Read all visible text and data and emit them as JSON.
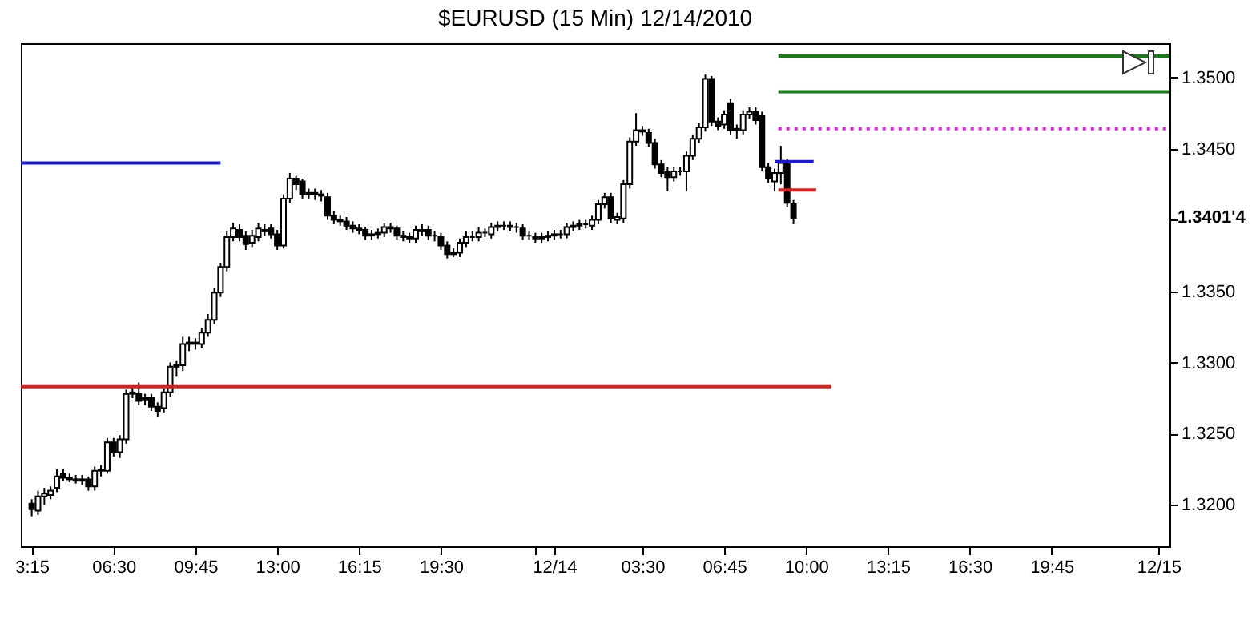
{
  "chart_data": {
    "type": "candlestick",
    "title": "$EURUSD (15 Min)  12/14/2010",
    "x": [
      "2010-12-13T03:15",
      "2010-12-13T03:30",
      "2010-12-13T03:45",
      "2010-12-13T04:00",
      "2010-12-13T04:15",
      "2010-12-13T04:30",
      "2010-12-13T04:45",
      "2010-12-13T05:00",
      "2010-12-13T05:15",
      "2010-12-13T05:30",
      "2010-12-13T05:45",
      "2010-12-13T06:00",
      "2010-12-13T06:15",
      "2010-12-13T06:30",
      "2010-12-13T06:45",
      "2010-12-13T07:00",
      "2010-12-13T07:15",
      "2010-12-13T07:30",
      "2010-12-13T07:45",
      "2010-12-13T08:00",
      "2010-12-13T08:15",
      "2010-12-13T08:30",
      "2010-12-13T08:45",
      "2010-12-13T09:00",
      "2010-12-13T09:15",
      "2010-12-13T09:30",
      "2010-12-13T09:45",
      "2010-12-13T10:00",
      "2010-12-13T10:15",
      "2010-12-13T10:30",
      "2010-12-13T10:45",
      "2010-12-13T11:00",
      "2010-12-13T11:15",
      "2010-12-13T11:30",
      "2010-12-13T11:45",
      "2010-12-13T12:00",
      "2010-12-13T12:15",
      "2010-12-13T12:30",
      "2010-12-13T12:45",
      "2010-12-13T13:00",
      "2010-12-13T13:15",
      "2010-12-13T13:30",
      "2010-12-13T13:45",
      "2010-12-13T14:00",
      "2010-12-13T14:15",
      "2010-12-13T14:30",
      "2010-12-13T14:45",
      "2010-12-13T15:00",
      "2010-12-13T15:15",
      "2010-12-13T15:30",
      "2010-12-13T15:45",
      "2010-12-13T16:00",
      "2010-12-13T16:15",
      "2010-12-13T16:30",
      "2010-12-13T16:45",
      "2010-12-13T17:00",
      "2010-12-13T17:15",
      "2010-12-13T17:30",
      "2010-12-13T17:45",
      "2010-12-13T18:00",
      "2010-12-13T18:15",
      "2010-12-13T18:30",
      "2010-12-13T18:45",
      "2010-12-13T19:00",
      "2010-12-13T19:15",
      "2010-12-13T19:30",
      "2010-12-13T19:45",
      "2010-12-13T20:00",
      "2010-12-13T20:15",
      "2010-12-13T20:30",
      "2010-12-13T20:45",
      "2010-12-13T21:00",
      "2010-12-13T21:15",
      "2010-12-13T21:30",
      "2010-12-13T21:45",
      "2010-12-13T22:00",
      "2010-12-13T22:15",
      "2010-12-13T22:30",
      "2010-12-13T22:45",
      "2010-12-13T23:00",
      "2010-12-13T23:15",
      "2010-12-13T23:30",
      "2010-12-13T23:45",
      "2010-12-14T00:00",
      "2010-12-14T00:15",
      "2010-12-14T00:30",
      "2010-12-14T00:45",
      "2010-12-14T01:00",
      "2010-12-14T01:15",
      "2010-12-14T01:30",
      "2010-12-14T01:45",
      "2010-12-14T02:00",
      "2010-12-14T02:15",
      "2010-12-14T02:30",
      "2010-12-14T02:45",
      "2010-12-14T03:00",
      "2010-12-14T03:15",
      "2010-12-14T03:30",
      "2010-12-14T03:45",
      "2010-12-14T04:00",
      "2010-12-14T04:15",
      "2010-12-14T04:30",
      "2010-12-14T04:45",
      "2010-12-14T05:00",
      "2010-12-14T05:15",
      "2010-12-14T05:30",
      "2010-12-14T05:45",
      "2010-12-14T06:00",
      "2010-12-14T06:15",
      "2010-12-14T06:30",
      "2010-12-14T06:45",
      "2010-12-14T07:00",
      "2010-12-14T07:15",
      "2010-12-14T07:30",
      "2010-12-14T07:45",
      "2010-12-14T08:00",
      "2010-12-14T08:15",
      "2010-12-14T08:30",
      "2010-12-14T08:45",
      "2010-12-14T09:00",
      "2010-12-14T09:15",
      "2010-12-14T09:30"
    ],
    "ohlc": [
      [
        1.3201,
        1.3204,
        1.3192,
        1.3197
      ],
      [
        1.3196,
        1.321,
        1.3193,
        1.3206
      ],
      [
        1.3206,
        1.3212,
        1.32,
        1.3208
      ],
      [
        1.3207,
        1.3213,
        1.3204,
        1.321
      ],
      [
        1.3212,
        1.3225,
        1.3209,
        1.322
      ],
      [
        1.3222,
        1.3225,
        1.3217,
        1.3219
      ],
      [
        1.3219,
        1.3222,
        1.3216,
        1.3218
      ],
      [
        1.3218,
        1.3221,
        1.3215,
        1.3217
      ],
      [
        1.3217,
        1.3221,
        1.3214,
        1.3218
      ],
      [
        1.3218,
        1.322,
        1.321,
        1.3213
      ],
      [
        1.3213,
        1.3227,
        1.321,
        1.3224
      ],
      [
        1.3224,
        1.3228,
        1.322,
        1.3225
      ],
      [
        1.3224,
        1.3247,
        1.3222,
        1.3244
      ],
      [
        1.3244,
        1.3247,
        1.3234,
        1.3237
      ],
      [
        1.3237,
        1.3249,
        1.3233,
        1.3246
      ],
      [
        1.3246,
        1.3281,
        1.3243,
        1.3278
      ],
      [
        1.3278,
        1.3283,
        1.3275,
        1.3279
      ],
      [
        1.3278,
        1.3286,
        1.327,
        1.3273
      ],
      [
        1.3274,
        1.3278,
        1.327,
        1.3275
      ],
      [
        1.3275,
        1.3278,
        1.3266,
        1.3269
      ],
      [
        1.3269,
        1.3272,
        1.3262,
        1.3266
      ],
      [
        1.3268,
        1.3282,
        1.3265,
        1.3279
      ],
      [
        1.3279,
        1.33,
        1.3276,
        1.3297
      ],
      [
        1.3297,
        1.3301,
        1.329,
        1.3298
      ],
      [
        1.3298,
        1.3318,
        1.3294,
        1.3313
      ],
      [
        1.3313,
        1.3318,
        1.3308,
        1.3314
      ],
      [
        1.3313,
        1.3317,
        1.3309,
        1.3314
      ],
      [
        1.3313,
        1.3324,
        1.331,
        1.3321
      ],
      [
        1.3321,
        1.3334,
        1.3318,
        1.333
      ],
      [
        1.333,
        1.3352,
        1.3327,
        1.3349
      ],
      [
        1.3349,
        1.337,
        1.3346,
        1.3367
      ],
      [
        1.3367,
        1.3392,
        1.3364,
        1.3388
      ],
      [
        1.3388,
        1.3398,
        1.3385,
        1.3394
      ],
      [
        1.3393,
        1.3397,
        1.3385,
        1.3388
      ],
      [
        1.3389,
        1.3392,
        1.3379,
        1.3383
      ],
      [
        1.3384,
        1.3393,
        1.3381,
        1.3389
      ],
      [
        1.3388,
        1.3398,
        1.3385,
        1.3394
      ],
      [
        1.3393,
        1.3397,
        1.3389,
        1.3392
      ],
      [
        1.3394,
        1.3397,
        1.3387,
        1.339
      ],
      [
        1.339,
        1.3393,
        1.3379,
        1.3382
      ],
      [
        1.3382,
        1.3418,
        1.338,
        1.3415
      ],
      [
        1.3415,
        1.3433,
        1.3412,
        1.3429
      ],
      [
        1.3429,
        1.3431,
        1.3421,
        1.3425
      ],
      [
        1.3427,
        1.3429,
        1.3415,
        1.3418
      ],
      [
        1.3418,
        1.3422,
        1.3415,
        1.3419
      ],
      [
        1.3419,
        1.3422,
        1.3414,
        1.3418
      ],
      [
        1.3418,
        1.3421,
        1.3413,
        1.3417
      ],
      [
        1.3416,
        1.3419,
        1.34,
        1.3403
      ],
      [
        1.3403,
        1.3406,
        1.3397,
        1.34
      ],
      [
        1.34,
        1.3403,
        1.3396,
        1.3399
      ],
      [
        1.3399,
        1.3402,
        1.3393,
        1.3396
      ],
      [
        1.3396,
        1.3399,
        1.3391,
        1.3394
      ],
      [
        1.3394,
        1.3397,
        1.339,
        1.3393
      ],
      [
        1.3393,
        1.3395,
        1.3386,
        1.3389
      ],
      [
        1.3389,
        1.3393,
        1.3386,
        1.339
      ],
      [
        1.339,
        1.3394,
        1.3387,
        1.3391
      ],
      [
        1.3391,
        1.3398,
        1.3388,
        1.3395
      ],
      [
        1.3395,
        1.3398,
        1.3391,
        1.3394
      ],
      [
        1.3394,
        1.3396,
        1.3386,
        1.3389
      ],
      [
        1.3389,
        1.3392,
        1.3385,
        1.3388
      ],
      [
        1.3388,
        1.3391,
        1.3384,
        1.3387
      ],
      [
        1.3387,
        1.3396,
        1.3384,
        1.3393
      ],
      [
        1.3393,
        1.3397,
        1.3389,
        1.3392
      ],
      [
        1.3393,
        1.3396,
        1.3386,
        1.3389
      ],
      [
        1.3389,
        1.3392,
        1.3385,
        1.3389
      ],
      [
        1.3388,
        1.3391,
        1.3379,
        1.3382
      ],
      [
        1.3382,
        1.3385,
        1.3373,
        1.3376
      ],
      [
        1.3376,
        1.338,
        1.3374,
        1.3377
      ],
      [
        1.3377,
        1.3387,
        1.3374,
        1.3384
      ],
      [
        1.3384,
        1.3392,
        1.3381,
        1.3388
      ],
      [
        1.3388,
        1.3392,
        1.3385,
        1.3388
      ],
      [
        1.3388,
        1.3395,
        1.3385,
        1.3391
      ],
      [
        1.3391,
        1.3394,
        1.3388,
        1.3391
      ],
      [
        1.339,
        1.3398,
        1.3387,
        1.3395
      ],
      [
        1.3395,
        1.3399,
        1.3392,
        1.3396
      ],
      [
        1.3396,
        1.3399,
        1.3393,
        1.3396
      ],
      [
        1.3396,
        1.3399,
        1.3392,
        1.3395
      ],
      [
        1.3395,
        1.3398,
        1.3391,
        1.3395
      ],
      [
        1.3394,
        1.3397,
        1.3386,
        1.3389
      ],
      [
        1.3389,
        1.3392,
        1.3386,
        1.3389
      ],
      [
        1.3388,
        1.3391,
        1.3384,
        1.3387
      ],
      [
        1.3387,
        1.3391,
        1.3384,
        1.3388
      ],
      [
        1.3388,
        1.3392,
        1.3385,
        1.3389
      ],
      [
        1.3389,
        1.3393,
        1.3386,
        1.339
      ],
      [
        1.339,
        1.3393,
        1.3387,
        1.339
      ],
      [
        1.339,
        1.3398,
        1.3387,
        1.3395
      ],
      [
        1.3395,
        1.3399,
        1.3392,
        1.3396
      ],
      [
        1.3396,
        1.34,
        1.3393,
        1.3397
      ],
      [
        1.3397,
        1.34,
        1.3394,
        1.3397
      ],
      [
        1.3396,
        1.3403,
        1.3393,
        1.34
      ],
      [
        1.34,
        1.3414,
        1.3397,
        1.3411
      ],
      [
        1.3411,
        1.3419,
        1.3408,
        1.3416
      ],
      [
        1.3416,
        1.3419,
        1.3398,
        1.3401
      ],
      [
        1.34,
        1.3405,
        1.3397,
        1.3402
      ],
      [
        1.3401,
        1.3428,
        1.3398,
        1.3425
      ],
      [
        1.3425,
        1.3458,
        1.3422,
        1.3455
      ],
      [
        1.3455,
        1.3475,
        1.3452,
        1.3463
      ],
      [
        1.3463,
        1.3466,
        1.3459,
        1.3462
      ],
      [
        1.3461,
        1.3464,
        1.3451,
        1.3454
      ],
      [
        1.3454,
        1.3457,
        1.3436,
        1.3439
      ],
      [
        1.3439,
        1.3442,
        1.343,
        1.3433
      ],
      [
        1.3434,
        1.3437,
        1.342,
        1.343
      ],
      [
        1.343,
        1.3437,
        1.3427,
        1.3434
      ],
      [
        1.3434,
        1.3437,
        1.3431,
        1.3434
      ],
      [
        1.3434,
        1.3448,
        1.342,
        1.3445
      ],
      [
        1.3445,
        1.346,
        1.3442,
        1.3457
      ],
      [
        1.3457,
        1.3468,
        1.3454,
        1.3465
      ],
      [
        1.3465,
        1.3502,
        1.3462,
        1.3499
      ],
      [
        1.3499,
        1.3501,
        1.3466,
        1.3469
      ],
      [
        1.3469,
        1.3472,
        1.3463,
        1.3466
      ],
      [
        1.3467,
        1.3477,
        1.3464,
        1.3474
      ],
      [
        1.3482,
        1.3485,
        1.346,
        1.3463
      ],
      [
        1.3463,
        1.3467,
        1.3457,
        1.3464
      ],
      [
        1.3463,
        1.3477,
        1.346,
        1.3474
      ],
      [
        1.3474,
        1.3479,
        1.3471,
        1.3476
      ],
      [
        1.3476,
        1.3479,
        1.3467,
        1.347
      ],
      [
        1.3473,
        1.3476,
        1.3434,
        1.3437
      ],
      [
        1.3437,
        1.344,
        1.3426,
        1.3429
      ],
      [
        1.3427,
        1.3436,
        1.342,
        1.3433
      ],
      [
        1.3433,
        1.3452,
        1.3425,
        1.344
      ],
      [
        1.344,
        1.3443,
        1.3409,
        1.3412
      ],
      [
        1.3411,
        1.3414,
        1.3397,
        1.34014
      ]
    ],
    "series": [
      {
        "type": "line",
        "color": "#1a1ad6",
        "x": [
          "2010-12-13T02:49",
          "2010-12-13T10:45"
        ],
        "values": [
          1.344,
          1.344
        ]
      },
      {
        "type": "line",
        "color": "#d62020",
        "x": [
          "2010-12-13T02:49",
          "2010-12-14T11:00"
        ],
        "values": [
          1.3283,
          1.3283
        ]
      },
      {
        "type": "line",
        "color": "#1a1ad6",
        "x": [
          "2010-12-14T08:45",
          "2010-12-14T10:18"
        ],
        "values": [
          1.3441,
          1.3441
        ]
      },
      {
        "type": "line",
        "color": "#e01f1f",
        "x": [
          "2010-12-14T08:54",
          "2010-12-14T10:24"
        ],
        "values": [
          1.3421,
          1.3421
        ]
      },
      {
        "type": "line",
        "color": "#e020e0",
        "line_style": "dotted",
        "x": [
          "2010-12-14T08:54",
          "2010-12-15T00:26"
        ],
        "values": [
          1.3464,
          1.3464
        ]
      },
      {
        "type": "line",
        "color": "#1a7a1a",
        "x": [
          "2010-12-14T08:54",
          "2010-12-15T00:26"
        ],
        "values": [
          1.3515,
          1.3515
        ]
      },
      {
        "type": "line",
        "color": "#1a7a1a",
        "x": [
          "2010-12-14T08:54",
          "2010-12-15T00:26"
        ],
        "values": [
          1.349,
          1.349
        ]
      }
    ],
    "annotations": [
      "1.3401'4"
    ],
    "xlim": [
      "2010-12-13T02:49",
      "2010-12-15T00:26"
    ],
    "xticks": [
      {
        "value": "2010-12-13T03:15",
        "label": "3:15"
      },
      {
        "value": "2010-12-13T06:30",
        "label": "06:30"
      },
      {
        "value": "2010-12-13T09:45",
        "label": "09:45"
      },
      {
        "value": "2010-12-13T13:00",
        "label": "13:00"
      },
      {
        "value": "2010-12-13T16:15",
        "label": "16:15"
      },
      {
        "value": "2010-12-13T19:30",
        "label": "19:30"
      },
      {
        "value": "2010-12-13T23:15",
        "label": null
      },
      {
        "value": "2010-12-14T00:00",
        "label": "12/14"
      },
      {
        "value": "2010-12-14T03:30",
        "label": "03:30"
      },
      {
        "value": "2010-12-14T06:45",
        "label": "06:45"
      },
      {
        "value": "2010-12-14T10:00",
        "label": "10:00"
      },
      {
        "value": "2010-12-14T13:15",
        "label": "13:15"
      },
      {
        "value": "2010-12-14T16:30",
        "label": "16:30"
      },
      {
        "value": "2010-12-14T19:45",
        "label": "19:45"
      },
      {
        "value": "2010-12-15T00:00",
        "label": "12/15"
      }
    ],
    "ylim": [
      1.3171,
      1.3524
    ],
    "yticks": [
      {
        "value": 1.32,
        "label": "1.3200"
      },
      {
        "value": 1.325,
        "label": "1.3250"
      },
      {
        "value": 1.33,
        "label": "1.3300"
      },
      {
        "value": 1.335,
        "label": "1.3350"
      },
      {
        "value": 1.34,
        "label": null
      },
      {
        "value": 1.345,
        "label": "1.3450"
      },
      {
        "value": 1.35,
        "label": "1.3500"
      }
    ],
    "grid": false
  }
}
